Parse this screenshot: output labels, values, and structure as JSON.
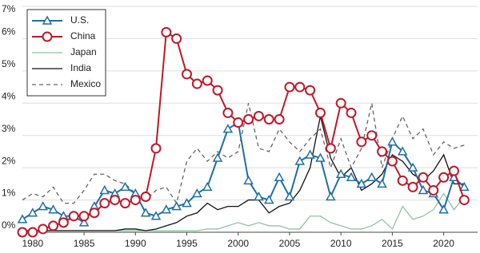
{
  "chart_data": {
    "type": "line",
    "x": [
      1979,
      1980,
      1981,
      1982,
      1983,
      1984,
      1985,
      1986,
      1987,
      1988,
      1989,
      1990,
      1991,
      1992,
      1993,
      1994,
      1995,
      1996,
      1997,
      1998,
      1999,
      2000,
      2001,
      2002,
      2003,
      2004,
      2005,
      2006,
      2007,
      2008,
      2009,
      2010,
      2011,
      2012,
      2013,
      2014,
      2015,
      2016,
      2017,
      2018,
      2019,
      2020,
      2021,
      2022
    ],
    "series": [
      {
        "name": "U.S.",
        "color": "#1f6fa8",
        "marker": "triangle",
        "values": [
          0.4,
          0.6,
          0.8,
          0.7,
          0.5,
          0.5,
          0.3,
          0.8,
          1.3,
          1.2,
          1.4,
          1.2,
          0.6,
          0.5,
          0.7,
          0.8,
          0.9,
          1.2,
          1.4,
          2.3,
          3.2,
          3.4,
          1.6,
          1.1,
          1.0,
          1.7,
          1.1,
          2.2,
          2.4,
          2.3,
          1.1,
          1.8,
          1.7,
          1.5,
          1.7,
          1.5,
          2.8,
          2.5,
          2.0,
          1.3,
          1.2,
          0.7,
          1.7,
          1.4
        ]
      },
      {
        "name": "China",
        "color": "#c0182a",
        "marker": "circle",
        "values": [
          0,
          0,
          0.1,
          0.2,
          0.3,
          0.5,
          0.5,
          0.6,
          0.9,
          1.0,
          0.9,
          1.0,
          1.1,
          2.6,
          6.2,
          6.0,
          4.9,
          4.6,
          4.7,
          4.4,
          3.7,
          3.4,
          3.5,
          3.6,
          3.5,
          3.5,
          4.5,
          4.5,
          4.4,
          3.7,
          2.6,
          4.0,
          3.7,
          2.8,
          3.0,
          2.5,
          2.2,
          1.6,
          1.4,
          1.7,
          1.3,
          1.7,
          1.9,
          1.0
        ]
      },
      {
        "name": "Japan",
        "color": "#8fc4a8",
        "values": [
          0.05,
          0.05,
          0.05,
          0.05,
          0.05,
          0.05,
          0.05,
          0.05,
          0.05,
          0.05,
          0.05,
          0.05,
          0.05,
          0.05,
          0.05,
          0.05,
          0.05,
          0.05,
          0.1,
          0.1,
          0.2,
          0.3,
          0.2,
          0.3,
          0.2,
          0.2,
          0.1,
          0.1,
          0.5,
          0.5,
          0.3,
          0.2,
          0.1,
          0.1,
          0.2,
          0.4,
          0.1,
          0.8,
          0.4,
          0.5,
          0.7,
          1.2,
          0.7,
          1.1
        ]
      },
      {
        "name": "India",
        "color": "#111111",
        "values": [
          0.05,
          0.05,
          0.05,
          0.05,
          0.05,
          0.05,
          0.05,
          0.05,
          0.05,
          0.05,
          0.1,
          0.1,
          0.05,
          0.1,
          0.2,
          0.3,
          0.5,
          0.6,
          0.9,
          0.7,
          0.8,
          0.8,
          1.0,
          1.0,
          0.6,
          0.8,
          0.9,
          1.3,
          2.0,
          3.6,
          2.3,
          1.7,
          2.0,
          1.3,
          1.5,
          1.8,
          2.4,
          2.2,
          1.8,
          1.6,
          1.9,
          2.4,
          1.5,
          1.5
        ]
      },
      {
        "name": "Mexico",
        "color": "#666666",
        "dash": true,
        "values": [
          1.0,
          1.2,
          1.1,
          1.4,
          0.9,
          0.9,
          1.3,
          1.8,
          1.8,
          1.6,
          1.5,
          1.2,
          1.0,
          1.3,
          1.4,
          0.9,
          2.2,
          2.6,
          2.2,
          2.5,
          2.3,
          2.5,
          4.0,
          2.6,
          2.5,
          3.2,
          2.8,
          2.5,
          2.9,
          3.2,
          2.0,
          2.9,
          2.0,
          2.6,
          4.0,
          2.0,
          2.9,
          3.6,
          2.9,
          3.2,
          2.4,
          2.8,
          2.6,
          2.7
        ]
      }
    ],
    "xlim": [
      1979,
      2023.3
    ],
    "xticks": [
      1980,
      1985,
      1990,
      1995,
      2000,
      2005,
      2010,
      2015,
      2020
    ],
    "ylim": [
      0,
      7
    ],
    "yticks": [
      {
        "value": 0,
        "label": "0%"
      },
      {
        "value": 1,
        "label": "1%"
      },
      {
        "value": 2,
        "label": "2%"
      },
      {
        "value": 3,
        "label": "3%"
      },
      {
        "value": 4,
        "label": "4%"
      },
      {
        "value": 5,
        "label": "5%"
      },
      {
        "value": 6,
        "label": "6%"
      },
      {
        "value": 7,
        "label": "7%"
      }
    ],
    "grid": true,
    "legend": "top-left"
  }
}
